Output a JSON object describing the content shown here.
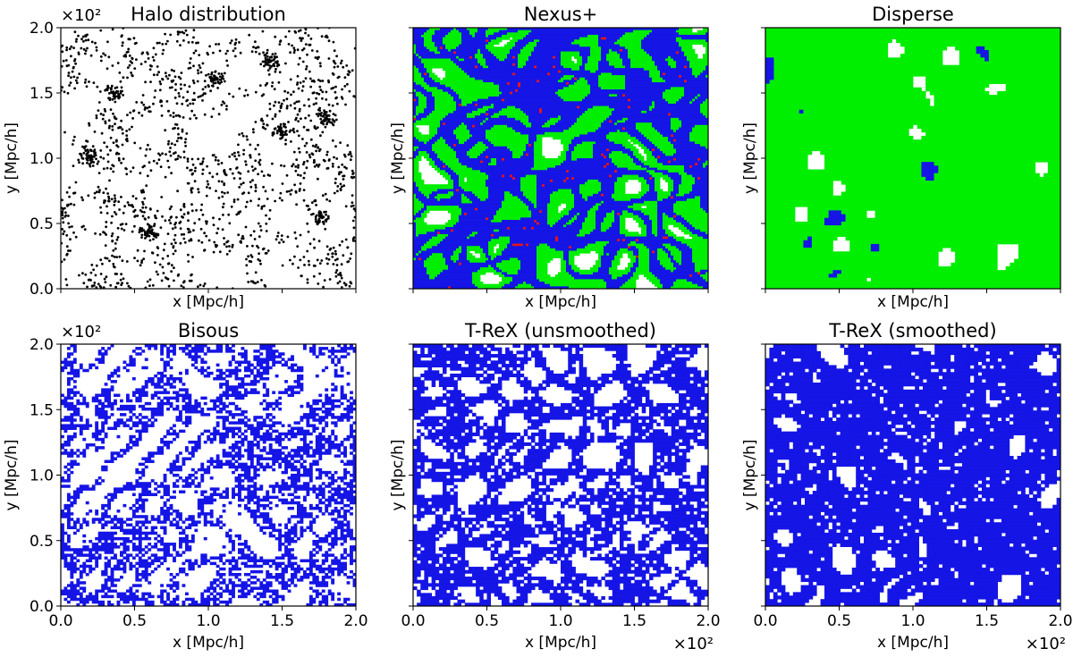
{
  "chart_data": [
    {
      "type": "scatter",
      "title": "Halo distribution",
      "xlabel": "x [Mpc/h]",
      "ylabel": "y [Mpc/h]",
      "xlim": [
        0,
        2.0
      ],
      "ylim": [
        0,
        2.0
      ],
      "x_ticks": [],
      "y_ticks": [
        "0.0",
        "0.5",
        "1.0",
        "1.5",
        "2.0"
      ],
      "x_offset": "",
      "y_offset": "×10²",
      "colors": {
        "halo": "#000000"
      }
    },
    {
      "type": "heatmap",
      "title": "Nexus+",
      "xlabel": "x [Mpc/h]",
      "ylabel": "y [Mpc/h]",
      "xlim": [
        0,
        2.0
      ],
      "ylim": [
        0,
        2.0
      ],
      "x_ticks": [],
      "y_ticks": [],
      "x_offset": "",
      "y_offset": "",
      "colors": {
        "wall": "#00ee00",
        "filament": "#1515e6",
        "node": "#e61515"
      }
    },
    {
      "type": "heatmap",
      "title": "Disperse",
      "xlabel": "x [Mpc/h]",
      "ylabel": "y [Mpc/h]",
      "xlim": [
        0,
        2.0
      ],
      "ylim": [
        0,
        2.0
      ],
      "x_ticks": [],
      "y_ticks": [],
      "x_offset": "",
      "y_offset": "",
      "colors": {
        "wall": "#00ee00",
        "filament": "#1515e6"
      }
    },
    {
      "type": "heatmap",
      "title": "Bisous",
      "xlabel": "x [Mpc/h]",
      "ylabel": "y [Mpc/h]",
      "xlim": [
        0,
        2.0
      ],
      "ylim": [
        0,
        2.0
      ],
      "x_ticks": [
        "0.0",
        "0.5",
        "1.0",
        "1.5",
        "2.0"
      ],
      "y_ticks": [
        "0.0",
        "0.5",
        "1.0",
        "1.5",
        "2.0"
      ],
      "x_offset": "",
      "y_offset": "×10²",
      "colors": {
        "filament": "#1515e6"
      }
    },
    {
      "type": "heatmap",
      "title": "T-ReX (unsmoothed)",
      "xlabel": "x [Mpc/h]",
      "ylabel": "y [Mpc/h]",
      "xlim": [
        0,
        2.0
      ],
      "ylim": [
        0,
        2.0
      ],
      "x_ticks": [
        "0.0",
        "0.5",
        "1.0",
        "1.5",
        "2.0"
      ],
      "y_ticks": [],
      "x_offset": "×10²",
      "y_offset": "",
      "colors": {
        "filament": "#1515e6"
      }
    },
    {
      "type": "heatmap",
      "title": "T-ReX (smoothed)",
      "xlabel": "x [Mpc/h]",
      "ylabel": "y [Mpc/h]",
      "xlim": [
        0,
        2.0
      ],
      "ylim": [
        0,
        2.0
      ],
      "x_ticks": [
        "0.0",
        "0.5",
        "1.0",
        "1.5",
        "2.0"
      ],
      "y_ticks": [],
      "x_offset": "×10²",
      "y_offset": "",
      "colors": {
        "filament": "#1515e6"
      }
    }
  ]
}
